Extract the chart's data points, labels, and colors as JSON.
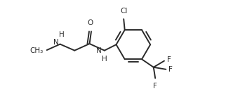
{
  "line_color": "#2a2a2a",
  "text_color": "#2a2a2a",
  "bg_color": "#ffffff",
  "line_width": 1.4,
  "font_size": 7.5,
  "fig_width": 3.22,
  "fig_height": 1.31,
  "dpi": 100,
  "xlim": [
    0,
    10.5
  ],
  "ylim": [
    0,
    4.1
  ]
}
